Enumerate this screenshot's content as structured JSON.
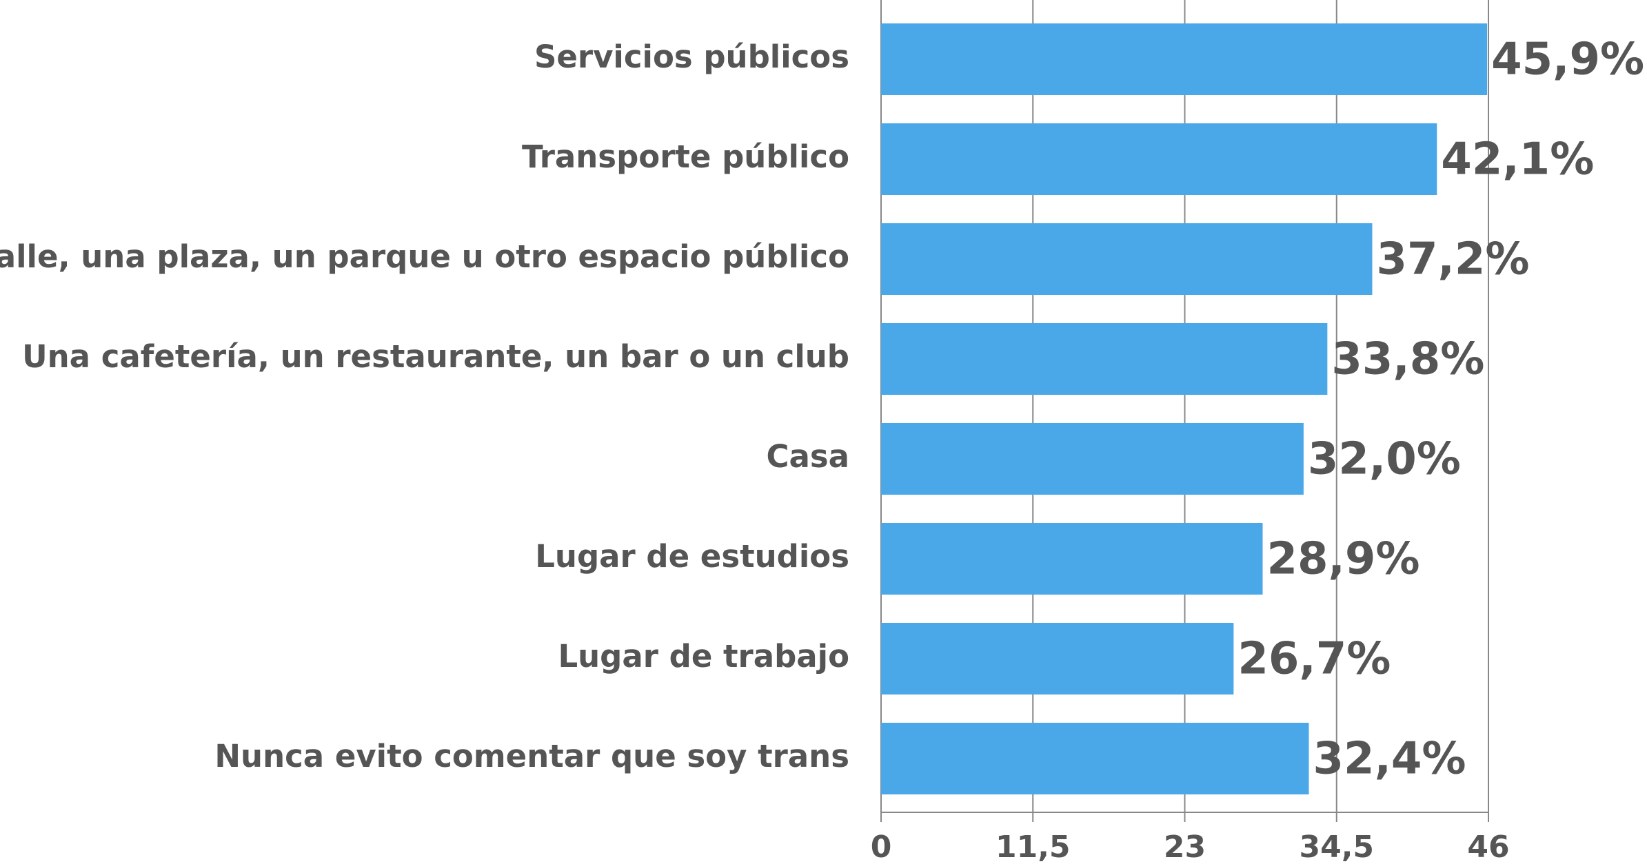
{
  "chart_data": {
    "type": "bar",
    "orientation": "horizontal",
    "categories": [
      "Servicios públicos",
      "Transporte público",
      "Una calle, una plaza, un parque u otro espacio público",
      "Una cafetería, un restaurante, un bar o un club",
      "Casa",
      "Lugar de estudios",
      "Lugar de trabajo",
      "Nunca evito comentar que soy trans"
    ],
    "values": [
      45.9,
      42.1,
      37.2,
      33.8,
      32.0,
      28.9,
      26.7,
      32.4
    ],
    "value_labels": [
      "45,9%",
      "42,1%",
      "37,2%",
      "33,8%",
      "32,0%",
      "28,9%",
      "26,7%",
      "32,4%"
    ],
    "color": "#4aa8e8",
    "xlim": [
      0,
      46
    ],
    "xticks": [
      0,
      {
        "value": 11.5,
        "label": "11,5"
      },
      23,
      {
        "value": 34.5,
        "label": "34,5"
      },
      46
    ],
    "grid": true
  }
}
